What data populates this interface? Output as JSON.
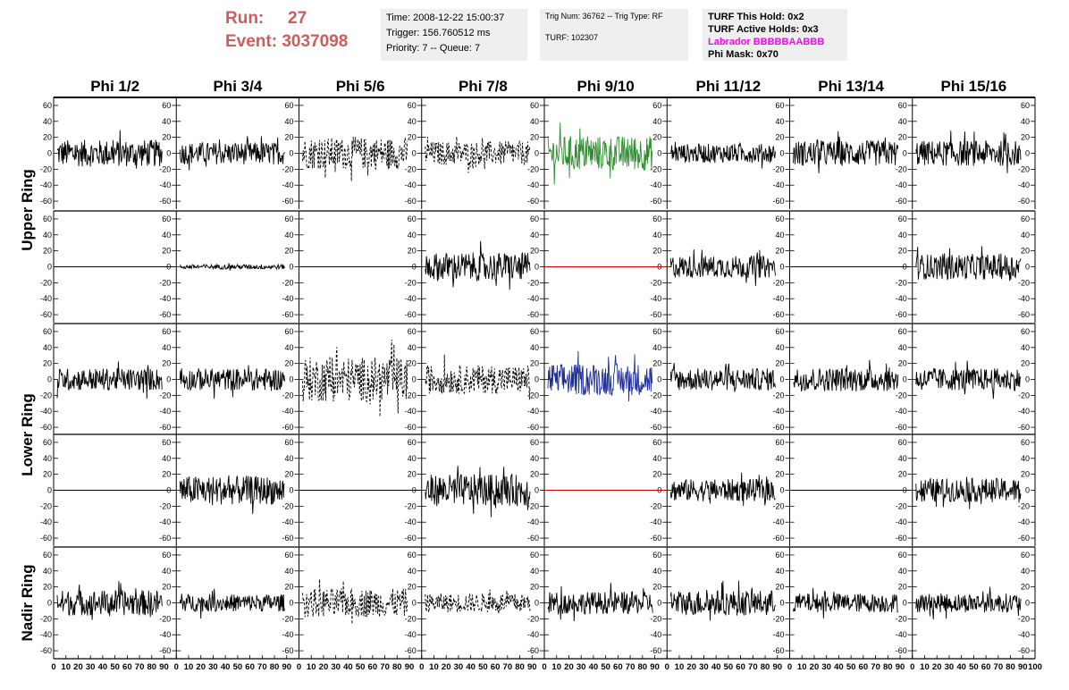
{
  "header": {
    "run_label": "Run:",
    "run_value": "27",
    "event_label": "Event:",
    "event_value": "3037098",
    "time_line": "Time: 2008-12-22 15:00:37",
    "trigger_line": "Trigger: 156.760512 ms",
    "priority_line": "Priority: 7 -- Queue: 7",
    "trig_line": "Trig Num: 36762 -- Trig Type: RF",
    "turf_line": "TURF: 102307",
    "turf_hold": "TURF This Hold: 0x2",
    "turf_active": "TURF Active Holds: 0x3",
    "labrador": "Labrador BBBBBAABBB",
    "phi_mask": "Phi Mask: 0x70"
  },
  "colors": {
    "run_text": "#cd5c5c",
    "labrador_text": "#ff00ff",
    "info_bg": "#efefef",
    "trace_default": "#000000",
    "trace_green": "#2e8b2e",
    "trace_blue": "#1f2f9a",
    "trace_red": "#cc0000"
  },
  "chart_data": {
    "type": "line",
    "description_note": "",
    "columns": [
      "Phi 1/2",
      "Phi 3/4",
      "Phi 5/6",
      "Phi 7/8",
      "Phi 9/10",
      "Phi 11/12",
      "Phi 13/14",
      "Phi 15/16"
    ],
    "row_groups": [
      "Upper Ring",
      "Lower Ring",
      "Nadir Ring"
    ],
    "x_ticks": [
      0,
      10,
      20,
      30,
      40,
      50,
      60,
      70,
      80,
      90,
      100
    ],
    "x_tick_labels": [
      "0",
      "10",
      "20",
      "30",
      "40",
      "50",
      "60",
      "70",
      "80",
      "90",
      "100"
    ],
    "xlim": [
      0,
      100
    ],
    "y_ticks": [
      -60,
      -40,
      -20,
      0,
      20,
      40,
      60
    ],
    "y_tick_labels": [
      "-60",
      "-40",
      "-20",
      "0",
      "20",
      "40",
      "60"
    ],
    "ylim": [
      -70,
      70
    ],
    "rows": [
      [
        {
          "style": "solid",
          "color": "#000000",
          "amp": 17
        },
        {
          "style": "solid",
          "color": "#000000",
          "amp": 14
        },
        {
          "style": "dashed",
          "color": "#000000",
          "amp": 20
        },
        {
          "style": "dashed",
          "color": "#000000",
          "amp": 15
        },
        {
          "style": "solid",
          "color": "#2e8b2e",
          "amp": 22
        },
        {
          "style": "solid",
          "color": "#000000",
          "amp": 12
        },
        {
          "style": "solid",
          "color": "#000000",
          "amp": 16
        },
        {
          "style": "solid",
          "color": "#000000",
          "amp": 16
        }
      ],
      [
        {
          "style": "flat",
          "color": "#000000",
          "amp": 0
        },
        {
          "style": "solid",
          "color": "#000000",
          "amp": 3
        },
        {
          "style": "flat",
          "color": "#000000",
          "amp": 0
        },
        {
          "style": "solid",
          "color": "#000000",
          "amp": 18
        },
        {
          "style": "flat",
          "color": "#cc0000",
          "amp": 0
        },
        {
          "style": "solid",
          "color": "#000000",
          "amp": 14
        },
        {
          "style": "flat",
          "color": "#000000",
          "amp": 0
        },
        {
          "style": "solid",
          "color": "#000000",
          "amp": 16
        }
      ],
      [
        {
          "style": "solid",
          "color": "#000000",
          "amp": 14
        },
        {
          "style": "solid",
          "color": "#000000",
          "amp": 14
        },
        {
          "style": "dashed",
          "color": "#000000",
          "amp": 28
        },
        {
          "style": "dashed",
          "color": "#000000",
          "amp": 18
        },
        {
          "style": "solid",
          "color": "#1f2f9a",
          "amp": 20
        },
        {
          "style": "solid",
          "color": "#000000",
          "amp": 14
        },
        {
          "style": "solid",
          "color": "#000000",
          "amp": 15
        },
        {
          "style": "solid",
          "color": "#000000",
          "amp": 14
        }
      ],
      [
        {
          "style": "flat",
          "color": "#000000",
          "amp": 0
        },
        {
          "style": "solid",
          "color": "#000000",
          "amp": 18
        },
        {
          "style": "flat",
          "color": "#000000",
          "amp": 0
        },
        {
          "style": "solid",
          "color": "#000000",
          "amp": 20
        },
        {
          "style": "flat",
          "color": "#cc0000",
          "amp": 0
        },
        {
          "style": "solid",
          "color": "#000000",
          "amp": 14
        },
        {
          "style": "flat",
          "color": "#000000",
          "amp": 0
        },
        {
          "style": "solid",
          "color": "#000000",
          "amp": 15
        }
      ],
      [
        {
          "style": "solid",
          "color": "#000000",
          "amp": 16
        },
        {
          "style": "solid",
          "color": "#000000",
          "amp": 11
        },
        {
          "style": "dashed",
          "color": "#000000",
          "amp": 18
        },
        {
          "style": "dashed",
          "color": "#000000",
          "amp": 12
        },
        {
          "style": "solid",
          "color": "#000000",
          "amp": 14
        },
        {
          "style": "solid",
          "color": "#000000",
          "amp": 16
        },
        {
          "style": "solid",
          "color": "#000000",
          "amp": 12
        },
        {
          "style": "solid",
          "color": "#000000",
          "amp": 12
        }
      ]
    ]
  }
}
